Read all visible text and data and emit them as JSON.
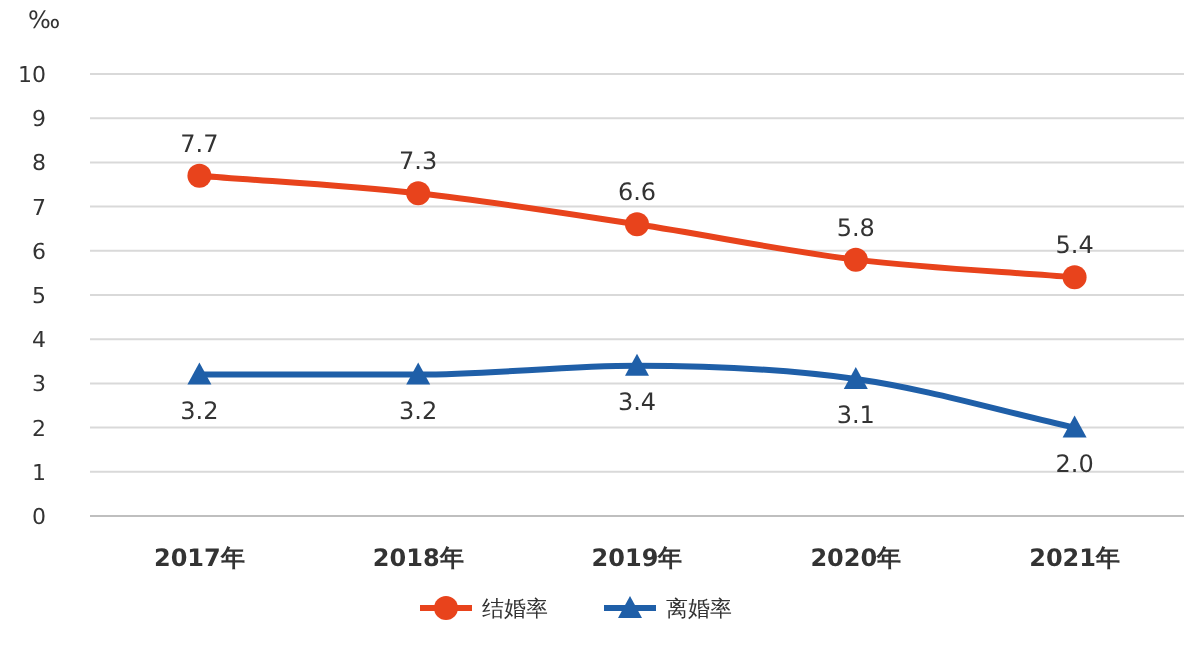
{
  "chart_data": {
    "type": "line",
    "ylabel": "‰",
    "categories": [
      "2017年",
      "2018年",
      "2019年",
      "2020年",
      "2021年"
    ],
    "series": [
      {
        "name": "结婚率",
        "color": "#e8431c",
        "marker": "circle",
        "values": [
          7.7,
          7.3,
          6.6,
          5.8,
          5.4
        ],
        "value_labels": [
          "7.7",
          "7.3",
          "6.6",
          "5.8",
          "5.4"
        ]
      },
      {
        "name": "离婚率",
        "color": "#1f5fa8",
        "marker": "triangle",
        "values": [
          3.2,
          3.2,
          3.4,
          3.1,
          2.0
        ],
        "value_labels": [
          "3.2",
          "3.2",
          "3.4",
          "3.1",
          "2.0"
        ]
      }
    ],
    "ylim": [
      0,
      10
    ],
    "yticks": [
      0,
      1,
      2,
      3,
      4,
      5,
      6,
      7,
      8,
      9,
      10
    ],
    "grid": "y",
    "legend": "bottom"
  }
}
